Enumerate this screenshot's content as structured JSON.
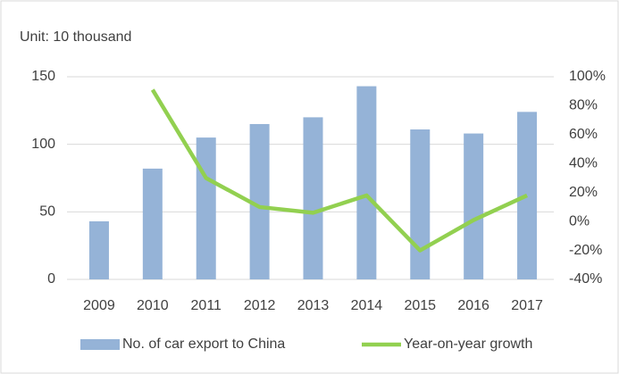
{
  "chart_data": {
    "type": "bar",
    "title": "Unit: 10 thousand",
    "categories": [
      "2009",
      "2010",
      "2011",
      "2012",
      "2013",
      "2014",
      "2015",
      "2016",
      "2017"
    ],
    "series": [
      {
        "name": "No. of car export to China",
        "type": "bar",
        "color": "#95b3d7",
        "values": [
          43,
          82,
          105,
          115,
          120,
          143,
          111,
          108,
          124
        ]
      },
      {
        "name": "Year-on-year growth",
        "type": "line",
        "axis": "y2",
        "color": "#92d050",
        "values": [
          null,
          91,
          30,
          10,
          6,
          18,
          -20,
          1,
          18
        ]
      }
    ],
    "ylim": [
      0,
      150
    ],
    "yticks": [
      0,
      50,
      100,
      150
    ],
    "y2lim": [
      -40,
      100
    ],
    "y2ticks": [
      {
        "value": -40,
        "label": "-40%"
      },
      {
        "value": -20,
        "label": "-20%"
      },
      {
        "value": 0,
        "label": "0%"
      },
      {
        "value": 20,
        "label": "20%"
      },
      {
        "value": 40,
        "label": "40%"
      },
      {
        "value": 60,
        "label": "60%"
      },
      {
        "value": 80,
        "label": "80%"
      },
      {
        "value": 100,
        "label": "100%"
      }
    ],
    "grid": true,
    "legend": "bottom"
  }
}
